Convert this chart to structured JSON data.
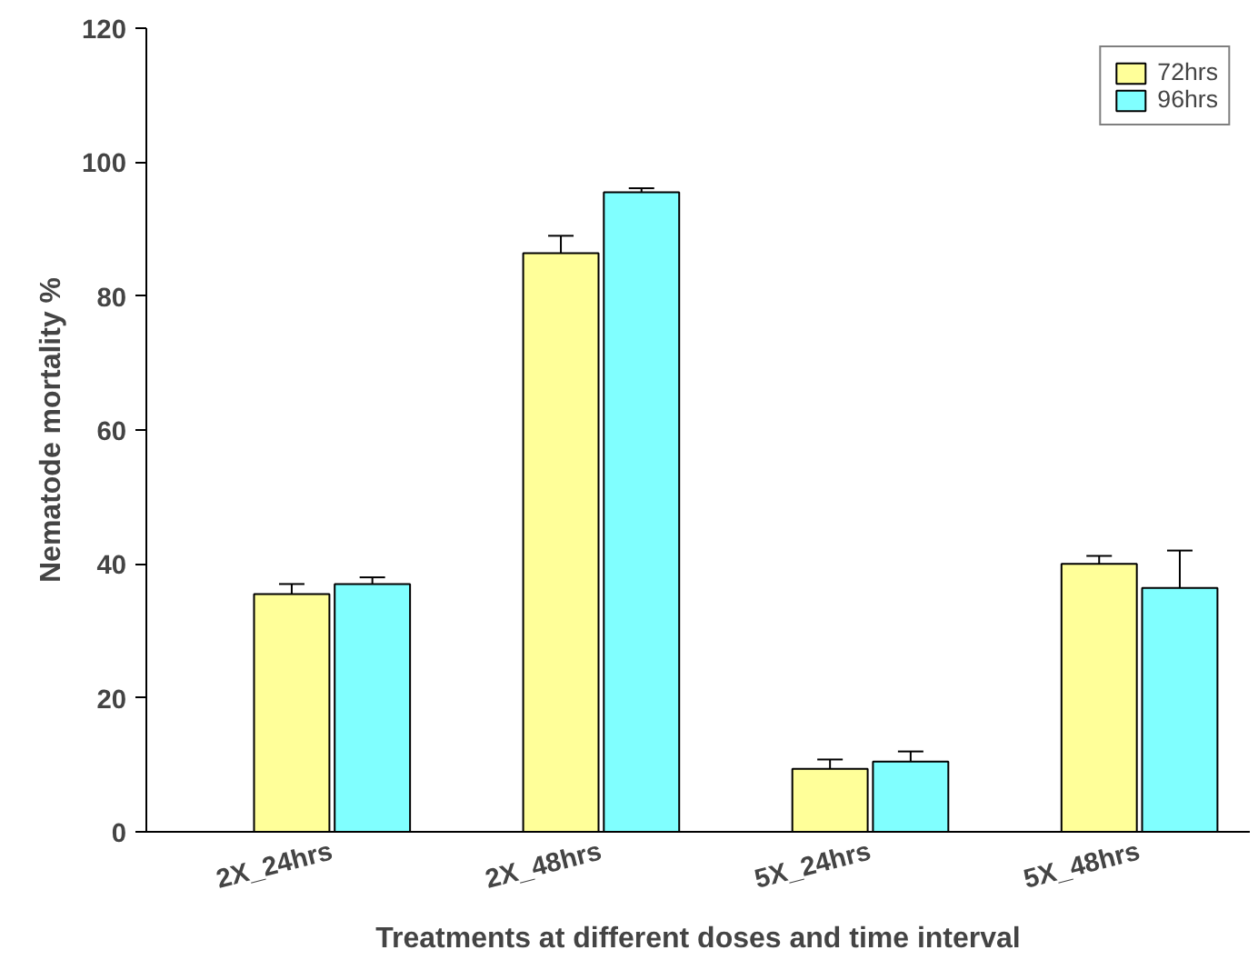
{
  "chart_data": {
    "type": "bar",
    "xlabel": "Treatments at different doses and time interval",
    "ylabel": "Nematode mortality %",
    "categories": [
      "2X_24hrs",
      "2X_48hrs",
      "5X_24hrs",
      "5X_48hrs"
    ],
    "series": [
      {
        "name": "72hrs",
        "color": "#ffff99",
        "values": [
          35.5,
          86.4,
          9.4,
          40
        ],
        "errors": [
          [
            35.5,
            37
          ],
          [
            86.4,
            89
          ],
          [
            9.4,
            10.8
          ],
          [
            40,
            41.2
          ]
        ]
      },
      {
        "name": "96hrs",
        "color": "#80ffff",
        "values": [
          37,
          95.5,
          10.5,
          36.4
        ],
        "errors": [
          [
            37,
            38
          ],
          [
            95.5,
            96.1
          ],
          [
            10.5,
            12
          ],
          [
            36.4,
            42
          ]
        ]
      }
    ],
    "ylim": [
      0,
      120
    ],
    "yticks": [
      0,
      20,
      40,
      60,
      80,
      100,
      120
    ],
    "grid": false,
    "legend": "top right"
  }
}
